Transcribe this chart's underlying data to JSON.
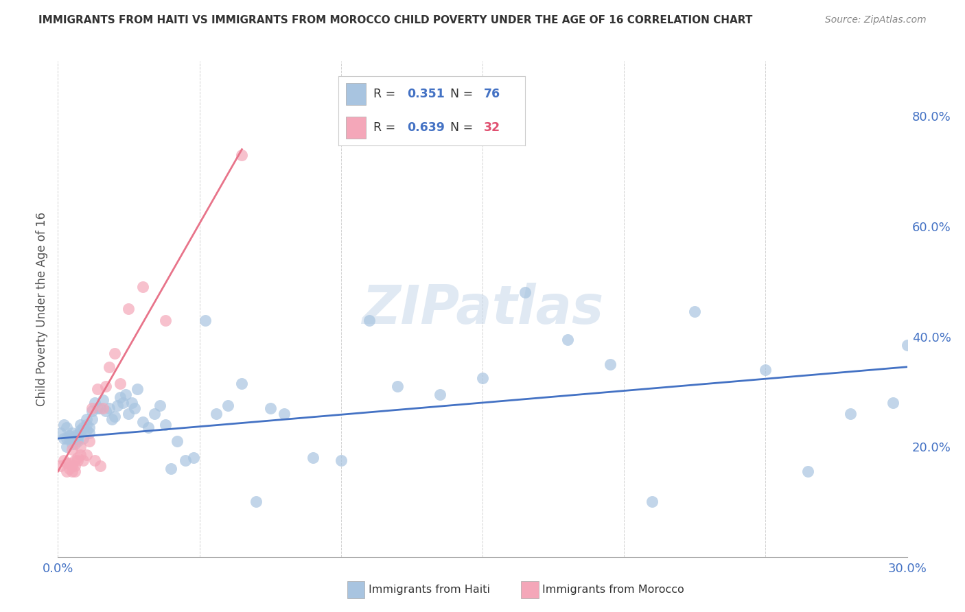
{
  "title": "IMMIGRANTS FROM HAITI VS IMMIGRANTS FROM MOROCCO CHILD POVERTY UNDER THE AGE OF 16 CORRELATION CHART",
  "source": "Source: ZipAtlas.com",
  "ylabel": "Child Poverty Under the Age of 16",
  "ylabel_right_ticks": [
    "20.0%",
    "40.0%",
    "60.0%",
    "80.0%"
  ],
  "ylabel_right_vals": [
    0.2,
    0.4,
    0.6,
    0.8
  ],
  "watermark": "ZIPatlas",
  "legend_haiti_R": "0.351",
  "legend_haiti_N": "76",
  "legend_morocco_R": "0.639",
  "legend_morocco_N": "32",
  "haiti_color": "#a8c4e0",
  "morocco_color": "#f4a7b9",
  "haiti_line_color": "#4472C4",
  "morocco_line_color": "#e8748a",
  "haiti_scatter_x": [
    0.001,
    0.002,
    0.002,
    0.003,
    0.003,
    0.003,
    0.004,
    0.004,
    0.005,
    0.005,
    0.005,
    0.006,
    0.006,
    0.007,
    0.007,
    0.007,
    0.008,
    0.008,
    0.008,
    0.009,
    0.009,
    0.01,
    0.01,
    0.01,
    0.011,
    0.011,
    0.012,
    0.012,
    0.013,
    0.014,
    0.015,
    0.016,
    0.017,
    0.018,
    0.019,
    0.02,
    0.021,
    0.022,
    0.023,
    0.024,
    0.025,
    0.026,
    0.027,
    0.028,
    0.03,
    0.032,
    0.034,
    0.036,
    0.038,
    0.04,
    0.042,
    0.045,
    0.048,
    0.052,
    0.056,
    0.06,
    0.065,
    0.07,
    0.075,
    0.08,
    0.09,
    0.1,
    0.11,
    0.12,
    0.135,
    0.15,
    0.165,
    0.18,
    0.195,
    0.21,
    0.225,
    0.25,
    0.265,
    0.28,
    0.295,
    0.3
  ],
  "haiti_scatter_y": [
    0.225,
    0.24,
    0.215,
    0.215,
    0.235,
    0.2,
    0.22,
    0.215,
    0.205,
    0.215,
    0.225,
    0.205,
    0.22,
    0.215,
    0.22,
    0.21,
    0.24,
    0.23,
    0.225,
    0.215,
    0.235,
    0.25,
    0.23,
    0.24,
    0.225,
    0.235,
    0.25,
    0.265,
    0.28,
    0.27,
    0.27,
    0.285,
    0.265,
    0.27,
    0.25,
    0.255,
    0.275,
    0.29,
    0.28,
    0.295,
    0.26,
    0.28,
    0.27,
    0.305,
    0.245,
    0.235,
    0.26,
    0.275,
    0.24,
    0.16,
    0.21,
    0.175,
    0.18,
    0.43,
    0.26,
    0.275,
    0.315,
    0.1,
    0.27,
    0.26,
    0.18,
    0.175,
    0.43,
    0.31,
    0.295,
    0.325,
    0.48,
    0.395,
    0.35,
    0.1,
    0.445,
    0.34,
    0.155,
    0.26,
    0.28,
    0.385
  ],
  "morocco_scatter_x": [
    0.001,
    0.002,
    0.003,
    0.003,
    0.004,
    0.004,
    0.005,
    0.005,
    0.005,
    0.006,
    0.006,
    0.006,
    0.007,
    0.007,
    0.008,
    0.008,
    0.009,
    0.01,
    0.011,
    0.012,
    0.013,
    0.014,
    0.015,
    0.016,
    0.017,
    0.018,
    0.02,
    0.022,
    0.025,
    0.03,
    0.038,
    0.065
  ],
  "morocco_scatter_y": [
    0.165,
    0.175,
    0.155,
    0.17,
    0.16,
    0.17,
    0.195,
    0.155,
    0.165,
    0.175,
    0.165,
    0.155,
    0.18,
    0.175,
    0.2,
    0.185,
    0.175,
    0.185,
    0.21,
    0.27,
    0.175,
    0.305,
    0.165,
    0.27,
    0.31,
    0.345,
    0.37,
    0.315,
    0.45,
    0.49,
    0.43,
    0.73
  ],
  "xmin": 0.0,
  "xmax": 0.3,
  "ymin": 0.0,
  "ymax": 0.9,
  "haiti_trend_x": [
    0.0,
    0.3
  ],
  "haiti_trend_y": [
    0.215,
    0.345
  ],
  "morocco_trend_x": [
    0.0,
    0.065
  ],
  "morocco_trend_y": [
    0.155,
    0.74
  ],
  "background_color": "#ffffff",
  "grid_color": "#cccccc",
  "title_color": "#333333",
  "axis_color": "#4472C4"
}
